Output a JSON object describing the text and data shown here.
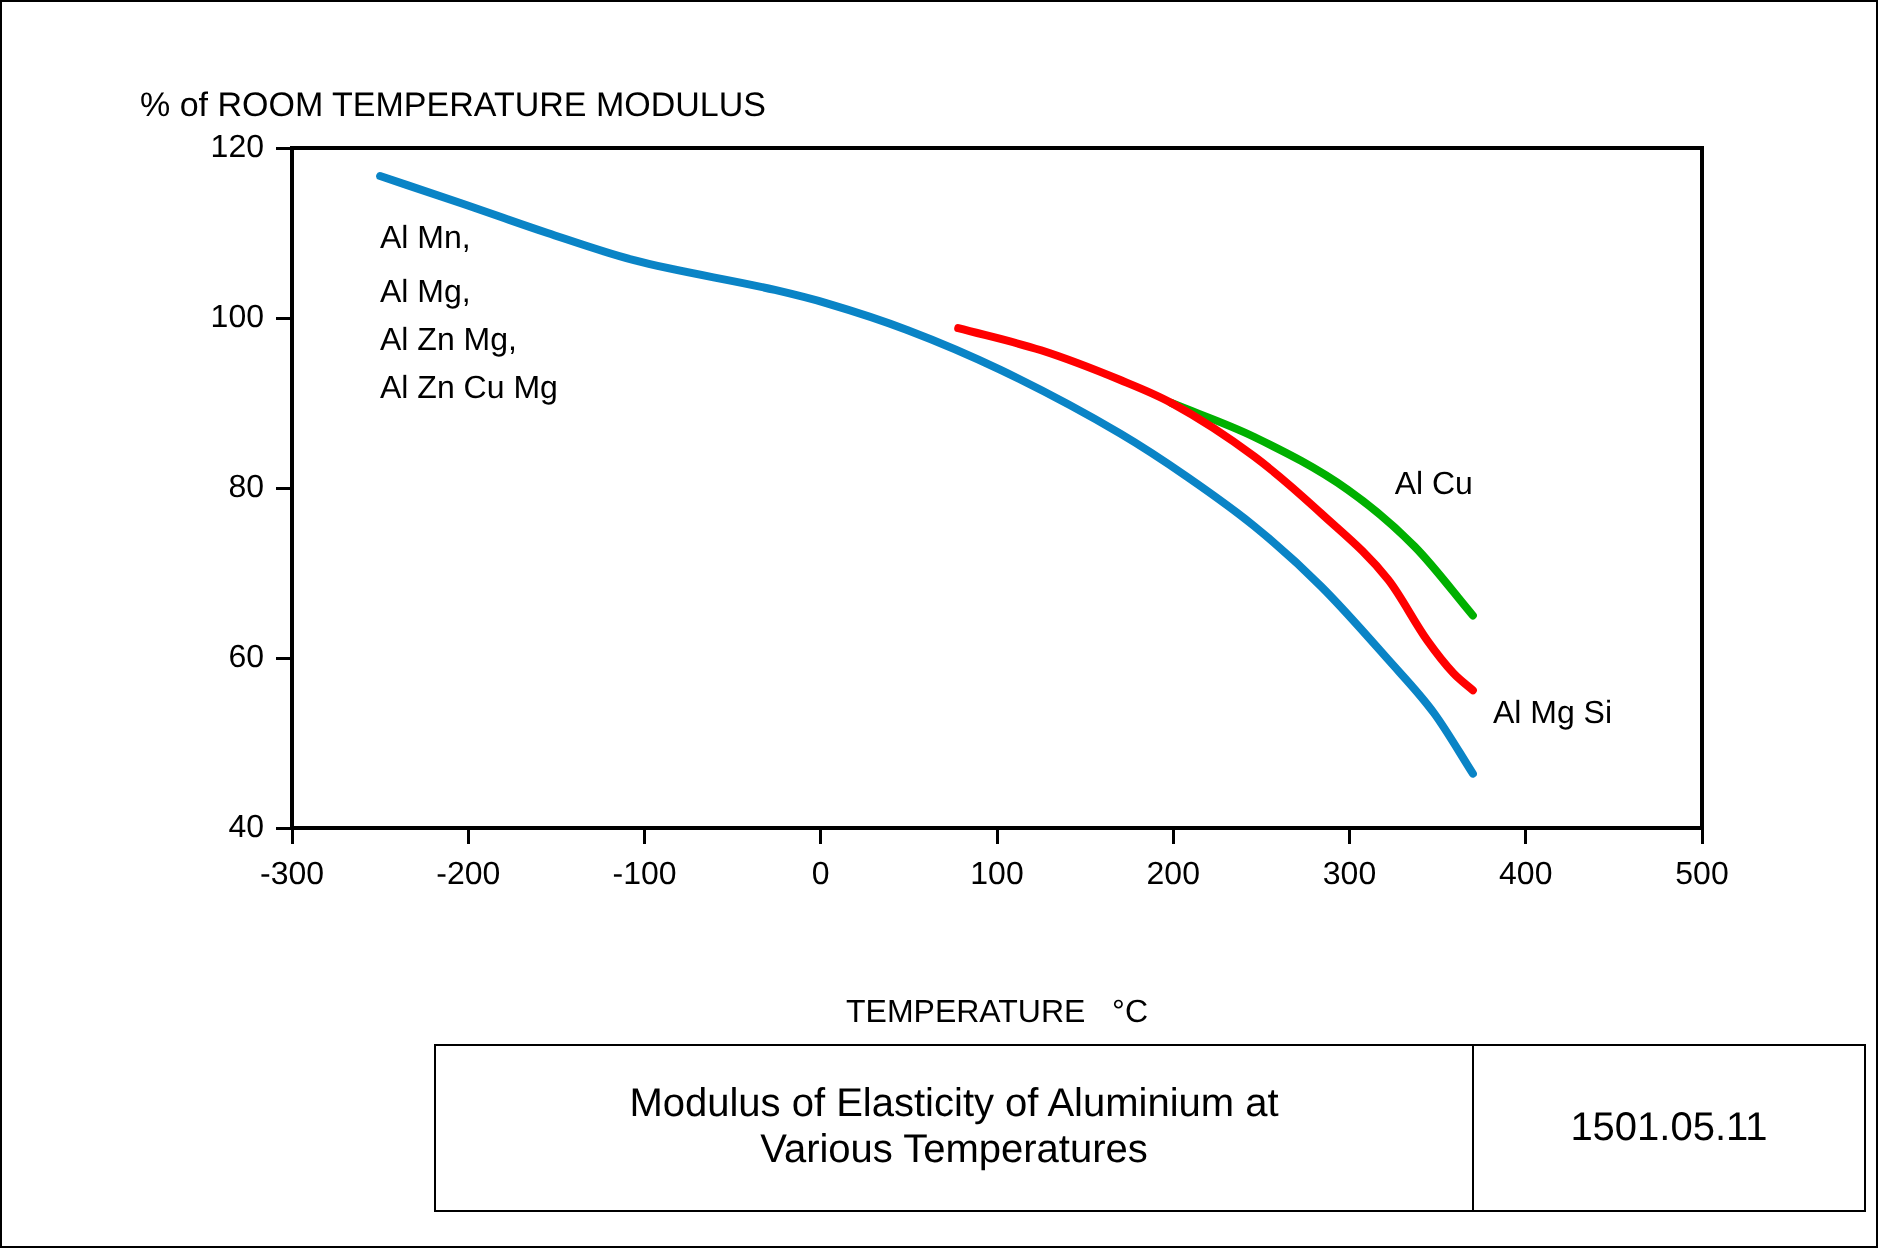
{
  "chart_data": {
    "type": "line",
    "title": "Modulus of Elasticity of Aluminium at Various Temperatures",
    "ylabel": "% of ROOM TEMPERATURE MODULUS",
    "xlabel": "TEMPERATURE   °C",
    "annotations": [
      "Al Mn,",
      "Al Mg,",
      "Al Zn Mg,",
      "Al Zn Cu Mg",
      "1501.05.11"
    ],
    "series": [
      {
        "color": "#0a84c6",
        "x": [
          -250,
          -204,
          -155,
          -106,
          -26,
          4,
          49,
          102,
          170,
          208,
          246,
          284,
          322,
          348,
          370
        ],
        "values": [
          116.7,
          113.5,
          110,
          106.8,
          103.3,
          101.7,
          98.6,
          93.9,
          86.4,
          81.3,
          75.5,
          68.4,
          59.8,
          53.5,
          46.4
        ]
      },
      {
        "name": "Al Mg Si",
        "color": "#ff0000",
        "x": [
          78,
          125,
          170,
          199,
          246,
          284,
          322,
          344,
          359,
          370
        ],
        "values": [
          98.8,
          96.2,
          92.7,
          90,
          83.7,
          77,
          69.2,
          62.1,
          58.2,
          56.2
        ]
      },
      {
        "name": "Al Cu",
        "color": "#00b000",
        "x": [
          199,
          246,
          299,
          337,
          370
        ],
        "values": [
          90,
          86,
          79.8,
          73.1,
          65
        ]
      }
    ],
    "xlim": [
      -300,
      500
    ],
    "xticks": [
      -300,
      -200,
      -100,
      0,
      100,
      200,
      300,
      400,
      500
    ],
    "ylim": [
      40,
      120
    ],
    "yticks": [
      40,
      60,
      80,
      100,
      120
    ],
    "grid": false,
    "legend": false,
    "marker": "none",
    "line_style": "solid"
  }
}
